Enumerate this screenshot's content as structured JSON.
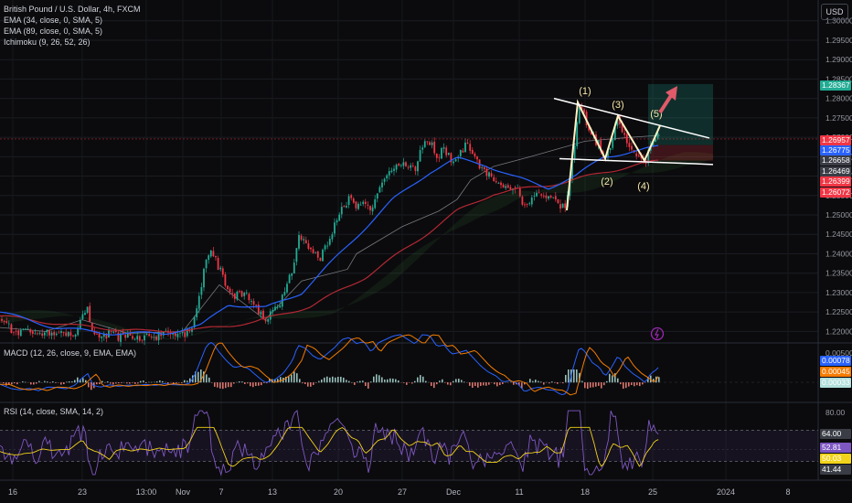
{
  "header": {
    "symbol_line": "British Pound / U.S. Dollar, 4h, FXCM",
    "indicators": [
      "EMA (34, close, 0, SMA, 5)",
      "EMA (89, close, 0, SMA, 5)",
      "Ichimoku (9, 26, 52, 26)"
    ],
    "currency": "USD"
  },
  "macd_pane": {
    "label": "MACD (12, 26, close, 9, EMA, EMA)"
  },
  "rsi_pane": {
    "label": "RSI (14, close, SMA, 14, 2)"
  },
  "colors": {
    "up": "#22ab94",
    "down": "#f23645",
    "ema34": "#2962ff",
    "ema89": "#b22833",
    "pattern": "#fff3c4",
    "arrow": "#e05a6a",
    "target_box": "rgba(34,171,148,0.22)",
    "stop_box": "rgba(242,54,69,0.22)"
  },
  "price_axis": {
    "ticks": [
      "1.30000",
      "1.29500",
      "1.29000",
      "1.28500",
      "1.28000",
      "1.27500",
      "1.27000",
      "1.26500",
      "1.26000",
      "1.25500",
      "1.25000",
      "1.24500",
      "1.24000",
      "1.23500",
      "1.23000",
      "1.22500",
      "1.22000"
    ],
    "tags": [
      {
        "text": "1.28367",
        "value": 1.28367,
        "color": "#22ab94"
      },
      {
        "text": "1.26957",
        "value": 1.26957,
        "color": "#f23645"
      },
      {
        "text": "1.26775",
        "value": 1.26775,
        "color": "#2962ff"
      },
      {
        "text": "1.26658",
        "value": 1.26658,
        "color": "#3a3d46"
      },
      {
        "text": "1.26469",
        "value": 1.26469,
        "color": "#3a3d46"
      },
      {
        "text": "1.26399",
        "value": 1.26399,
        "color": "#f23645"
      },
      {
        "text": "1.26072",
        "value": 1.26072,
        "color": "#f23645"
      }
    ]
  },
  "macd_axis": {
    "ticks": [
      "0.00500"
    ],
    "tags": [
      {
        "text": "0.00078",
        "color": "#2962ff"
      },
      {
        "text": "0.00045",
        "color": "#f57c00"
      },
      {
        "text": "0.00033",
        "color": "#b2dfdb"
      }
    ]
  },
  "rsi_axis": {
    "ticks": [
      "80.00"
    ],
    "tags": [
      {
        "text": "64.00",
        "color": "#3a3d46"
      },
      {
        "text": "52.81",
        "color": "#7e57c2"
      },
      {
        "text": "50.03",
        "color": "#f2d31b"
      },
      {
        "text": "41.44",
        "color": "#3a3d46"
      }
    ]
  },
  "time_axis": {
    "labels": [
      "16",
      "23",
      "13:00",
      "Nov",
      "7",
      "13",
      "20",
      "27",
      "Dec",
      "11",
      "18",
      "25",
      "2024",
      "8"
    ]
  },
  "chart_data": {
    "type": "candlestick",
    "price_range": [
      1.2175,
      1.303
    ],
    "series": [
      {
        "name": "EMA (34, close, 0, SMA, 5)",
        "color": "#2962ff"
      },
      {
        "name": "EMA (89, close, 0, SMA, 5)",
        "color": "#b22833"
      },
      {
        "name": "Ichimoku (9, 26, 52, 26)",
        "color": "#d1d4dc"
      }
    ],
    "close_anchors": [
      [
        0,
        1.223
      ],
      [
        12,
        1.2205
      ],
      [
        22,
        1.2195
      ],
      [
        32,
        1.22
      ],
      [
        42,
        1.2185
      ],
      [
        52,
        1.22
      ],
      [
        62,
        1.2195
      ],
      [
        72,
        1.2185
      ],
      [
        82,
        1.22
      ],
      [
        90,
        1.2235
      ],
      [
        96,
        1.2255
      ],
      [
        102,
        1.2195
      ],
      [
        110,
        1.2185
      ],
      [
        120,
        1.2195
      ],
      [
        130,
        1.2185
      ],
      [
        140,
        1.219
      ],
      [
        150,
        1.2185
      ],
      [
        160,
        1.219
      ],
      [
        170,
        1.2185
      ],
      [
        180,
        1.2195
      ],
      [
        190,
        1.219
      ],
      [
        200,
        1.219
      ],
      [
        208,
        1.22
      ],
      [
        214,
        1.225
      ],
      [
        220,
        1.232
      ],
      [
        226,
        1.239
      ],
      [
        232,
        1.241
      ],
      [
        240,
        1.236
      ],
      [
        248,
        1.232
      ],
      [
        256,
        1.229
      ],
      [
        264,
        1.23
      ],
      [
        272,
        1.229
      ],
      [
        280,
        1.226
      ],
      [
        290,
        1.223
      ],
      [
        300,
        1.225
      ],
      [
        310,
        1.229
      ],
      [
        320,
        1.236
      ],
      [
        326,
        1.244
      ],
      [
        334,
        1.243
      ],
      [
        342,
        1.24
      ],
      [
        350,
        1.239
      ],
      [
        358,
        1.243
      ],
      [
        366,
        1.247
      ],
      [
        374,
        1.252
      ],
      [
        382,
        1.254
      ],
      [
        390,
        1.252
      ],
      [
        398,
        1.254
      ],
      [
        406,
        1.25
      ],
      [
        414,
        1.256
      ],
      [
        422,
        1.259
      ],
      [
        430,
        1.262
      ],
      [
        438,
        1.264
      ],
      [
        446,
        1.263
      ],
      [
        454,
        1.262
      ],
      [
        462,
        1.268
      ],
      [
        470,
        1.269
      ],
      [
        478,
        1.265
      ],
      [
        486,
        1.267
      ],
      [
        494,
        1.264
      ],
      [
        502,
        1.266
      ],
      [
        510,
        1.268
      ],
      [
        518,
        1.265
      ],
      [
        526,
        1.262
      ],
      [
        534,
        1.26
      ],
      [
        542,
        1.259
      ],
      [
        550,
        1.256
      ],
      [
        558,
        1.257
      ],
      [
        566,
        1.256
      ],
      [
        574,
        1.252
      ],
      [
        582,
        1.254
      ],
      [
        590,
        1.255
      ],
      [
        598,
        1.254
      ],
      [
        606,
        1.254
      ],
      [
        614,
        1.252
      ],
      [
        620,
        1.253
      ],
      [
        628,
        1.268
      ],
      [
        634,
        1.277
      ],
      [
        640,
        1.275
      ],
      [
        648,
        1.27
      ],
      [
        656,
        1.268
      ],
      [
        662,
        1.264
      ],
      [
        668,
        1.268
      ],
      [
        676,
        1.275
      ],
      [
        684,
        1.27
      ],
      [
        692,
        1.267
      ],
      [
        700,
        1.265
      ],
      [
        706,
        1.263
      ],
      [
        712,
        1.268
      ],
      [
        718,
        1.27
      ],
      [
        722,
        1.2725
      ]
    ],
    "ema34_anchors": [
      [
        0,
        1.225
      ],
      [
        60,
        1.221
      ],
      [
        120,
        1.2195
      ],
      [
        180,
        1.2195
      ],
      [
        220,
        1.2215
      ],
      [
        250,
        1.227
      ],
      [
        290,
        1.226
      ],
      [
        330,
        1.23
      ],
      [
        380,
        1.242
      ],
      [
        430,
        1.254
      ],
      [
        470,
        1.261
      ],
      [
        500,
        1.2645
      ],
      [
        530,
        1.263
      ],
      [
        560,
        1.26
      ],
      [
        600,
        1.257
      ],
      [
        630,
        1.26
      ],
      [
        660,
        1.265
      ],
      [
        700,
        1.2665
      ],
      [
        722,
        1.2678
      ]
    ],
    "ema89_anchors": [
      [
        0,
        1.224
      ],
      [
        80,
        1.2215
      ],
      [
        160,
        1.22
      ],
      [
        220,
        1.2205
      ],
      [
        280,
        1.2225
      ],
      [
        340,
        1.2265
      ],
      [
        400,
        1.234
      ],
      [
        460,
        1.244
      ],
      [
        500,
        1.251
      ],
      [
        540,
        1.2555
      ],
      [
        580,
        1.257
      ],
      [
        620,
        1.2585
      ],
      [
        660,
        1.261
      ],
      [
        700,
        1.263
      ],
      [
        722,
        1.264
      ]
    ],
    "ichimoku_lagging_anchors": [
      [
        0,
        1.221
      ],
      [
        50,
        1.22
      ],
      [
        90,
        1.223
      ],
      [
        140,
        1.2195
      ],
      [
        200,
        1.22
      ],
      [
        240,
        1.232
      ],
      [
        290,
        1.223
      ],
      [
        330,
        1.233
      ],
      [
        380,
        1.236
      ],
      [
        390,
        1.24
      ],
      [
        440,
        1.247
      ],
      [
        480,
        1.251
      ],
      [
        500,
        1.254
      ],
      [
        515,
        1.259
      ],
      [
        540,
        1.2625
      ],
      [
        580,
        1.265
      ],
      [
        640,
        1.269
      ],
      [
        690,
        1.27
      ],
      [
        722,
        1.2705
      ]
    ],
    "wave_pattern": {
      "points": [
        [
          620,
          1.2512
        ],
        [
          632,
          1.279
        ],
        [
          662,
          1.2645
        ],
        [
          676,
          1.2755
        ],
        [
          705,
          1.264
        ],
        [
          722,
          1.273
        ]
      ],
      "labels": [
        "(1)",
        "(2)",
        "(3)",
        "(4)",
        "(5)"
      ],
      "upper_trendline": [
        [
          606,
          1.28
        ],
        [
          776,
          1.2698
        ]
      ],
      "lower_trendline": [
        [
          612,
          1.2645
        ],
        [
          780,
          1.263
        ]
      ]
    },
    "target_box": {
      "x": [
        709,
        780
      ],
      "price": [
        1.2837,
        1.268
      ]
    },
    "stop_box": {
      "x": [
        709,
        780
      ],
      "price": [
        1.268,
        1.264
      ]
    },
    "rsi_levels": {
      "upper": 64.0,
      "lower": 41.44,
      "range": [
        30,
        80
      ]
    }
  }
}
